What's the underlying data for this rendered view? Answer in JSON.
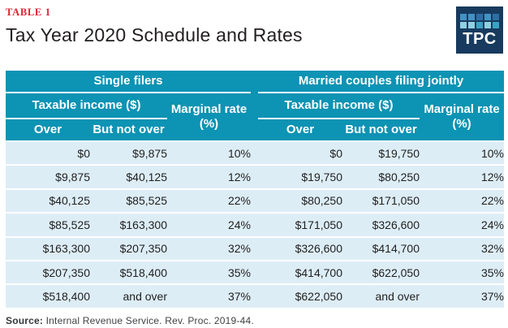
{
  "header": {
    "table_label": "TABLE 1",
    "title": "Tax Year 2020 Schedule and Rates",
    "logo_text": "TPC",
    "logo_bg": "#173a5e",
    "logo_grid": [
      "#4193c4",
      "#4193c4",
      "#2d6ea6",
      "#4193c4",
      "#2d6ea6",
      "#8fd0e2",
      "#8fd0e2",
      "#3aa3c4",
      "#8fd0e2",
      "#3aa3c4"
    ]
  },
  "colors": {
    "header_teal": "#0d93b4",
    "row_light_blue": "#ddedf6",
    "label_red": "#e01f2f",
    "title_black": "#231f20",
    "footer_gray": "#3f4245"
  },
  "table": {
    "sections": [
      {
        "group_header": "Single filers",
        "income_header": "Taxable income ($)",
        "rate_header": "Marginal rate (%)",
        "col_over": "Over",
        "col_not_over": "But not over",
        "rows": [
          {
            "over": "$0",
            "not_over": "$9,875",
            "rate": "10%"
          },
          {
            "over": "$9,875",
            "not_over": "$40,125",
            "rate": "12%"
          },
          {
            "over": "$40,125",
            "not_over": "$85,525",
            "rate": "22%"
          },
          {
            "over": "$85,525",
            "not_over": "$163,300",
            "rate": "24%"
          },
          {
            "over": "$163,300",
            "not_over": "$207,350",
            "rate": "32%"
          },
          {
            "over": "$207,350",
            "not_over": "$518,400",
            "rate": "35%"
          },
          {
            "over": "$518,400",
            "not_over": "and over",
            "rate": "37%"
          }
        ]
      },
      {
        "group_header": "Married couples filing jointly",
        "income_header": "Taxable income ($)",
        "rate_header": "Marginal rate (%)",
        "col_over": "Over",
        "col_not_over": "But not over",
        "rows": [
          {
            "over": "$0",
            "not_over": "$19,750",
            "rate": "10%"
          },
          {
            "over": "$19,750",
            "not_over": "$80,250",
            "rate": "12%"
          },
          {
            "over": "$80,250",
            "not_over": "$171,050",
            "rate": "22%"
          },
          {
            "over": "$171,050",
            "not_over": "$326,600",
            "rate": "24%"
          },
          {
            "over": "$326,600",
            "not_over": "$414,700",
            "rate": "32%"
          },
          {
            "over": "$414,700",
            "not_over": "$622,050",
            "rate": "35%"
          },
          {
            "over": "$622,050",
            "not_over": "and over",
            "rate": "37%"
          }
        ]
      }
    ]
  },
  "footer": {
    "source_label": "Source:",
    "source_text": "Internal Revenue Service. Rev. Proc. 2019-44."
  },
  "chart_data": {
    "type": "table",
    "title": "Tax Year 2020 Schedule and Rates",
    "tables": [
      {
        "name": "Single filers",
        "columns": [
          "Over",
          "But not over",
          "Marginal rate (%)"
        ],
        "rows": [
          [
            "$0",
            "$9,875",
            "10%"
          ],
          [
            "$9,875",
            "$40,125",
            "12%"
          ],
          [
            "$40,125",
            "$85,525",
            "22%"
          ],
          [
            "$85,525",
            "$163,300",
            "24%"
          ],
          [
            "$163,300",
            "$207,350",
            "32%"
          ],
          [
            "$207,350",
            "$518,400",
            "35%"
          ],
          [
            "$518,400",
            "and over",
            "37%"
          ]
        ]
      },
      {
        "name": "Married couples filing jointly",
        "columns": [
          "Over",
          "But not over",
          "Marginal rate (%)"
        ],
        "rows": [
          [
            "$0",
            "$19,750",
            "10%"
          ],
          [
            "$19,750",
            "$80,250",
            "12%"
          ],
          [
            "$80,250",
            "$171,050",
            "22%"
          ],
          [
            "$171,050",
            "$326,600",
            "24%"
          ],
          [
            "$326,600",
            "$414,700",
            "32%"
          ],
          [
            "$414,700",
            "$622,050",
            "35%"
          ],
          [
            "$622,050",
            "and over",
            "37%"
          ]
        ]
      }
    ],
    "source": "Internal Revenue Service. Rev. Proc. 2019-44."
  }
}
